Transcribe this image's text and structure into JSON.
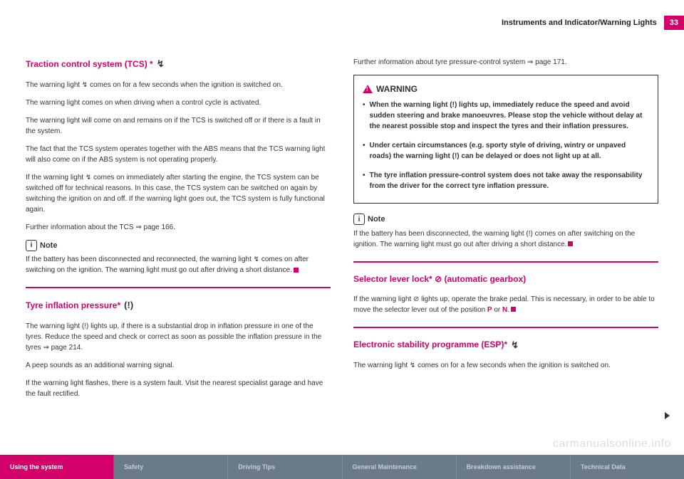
{
  "header": {
    "title": "Instruments and Indicator/Warning Lights",
    "page": "33"
  },
  "colors": {
    "accent": "#d4006a",
    "footer_active_bg": "#d4006a",
    "footer_active_fg": "#ffffff",
    "footer_inactive_bg": "#6b7a8a",
    "footer_inactive_fg": "#c7ccd3"
  },
  "left": {
    "s1": {
      "heading": "Traction control system (TCS) *",
      "icon": "↯",
      "p1": "The warning light ↯ comes on for a few seconds when the ignition is switched on.",
      "p2": "The warning light comes on when driving when a control cycle is activated.",
      "p3": "The warning light will come on and remains on if the TCS is switched off or if there is a fault in the system.",
      "p4": "The fact that the TCS system operates together with the ABS means that the TCS warning light will also come on if the ABS system is not operating properly.",
      "p5": "If the warning light ↯ comes on immediately after starting the engine, the TCS system can be switched off for technical reasons. In this case, the TCS system can be switched on again by switching the ignition on and off. If the warning light goes out, the TCS system is fully functional again.",
      "p6": "Further information about the TCS ⇒ page 166.",
      "note_label": "Note",
      "note": "If the battery has been disconnected and reconnected, the warning light ↯ comes on after switching on the ignition. The warning light must go out after driving a short distance."
    },
    "s2": {
      "heading": "Tyre inflation pressure*",
      "icon": "(!)",
      "p1": "The warning light (!) lights up, if there is a substantial drop in inflation pressure in one of the tyres. Reduce the speed and check or correct as soon as possible the inflation pressure in the tyres ⇒ page 214.",
      "p2": "A peep sounds as an additional warning signal.",
      "p3": "If the warning light flashes, there is a system fault. Visit the nearest specialist garage and have the fault rectified."
    }
  },
  "right": {
    "p_top": "Further information about tyre pressure-control system ⇒ page 171.",
    "warning_label": "WARNING",
    "w1": "When the warning light (!) lights up, immediately reduce the speed and avoid sudden steering and brake manoeuvres. Please stop the vehicle without delay at the nearest possible stop and inspect the tyres and their inflation pressures.",
    "w2": "Under certain circumstances (e.g. sporty style of driving, wintry or unpaved roads) the warning light (!) can be delayed or does not light up at all.",
    "w3": "The tyre inflation pressure-control system does not take away the responsability from the driver for the correct tyre inflation pressure.",
    "note_label": "Note",
    "note": "If the battery has been disconnected, the warning light (!) comes on after switching on the ignition. The warning light must go out after driving a short distance.",
    "s3": {
      "heading": "Selector lever lock* ⊘ (automatic gearbox)",
      "p1a": "If the warning light ⊘ lights up, operate the brake pedal. This is necessary, in order to be able to move the selector lever out of the position ",
      "P": "P",
      "or": " or ",
      "N": "N",
      "p1b": "."
    },
    "s4": {
      "heading": "Electronic stability programme (ESP)*",
      "icon": "↯",
      "p1": "The warning light ↯ comes on for a few seconds when the ignition is switched on."
    }
  },
  "footer": {
    "tabs": [
      "Using the system",
      "Safety",
      "Driving Tips",
      "General Maintenance",
      "Breakdown assistance",
      "Technical Data"
    ],
    "active_index": 0
  },
  "watermark": "carmanualsonline.info"
}
